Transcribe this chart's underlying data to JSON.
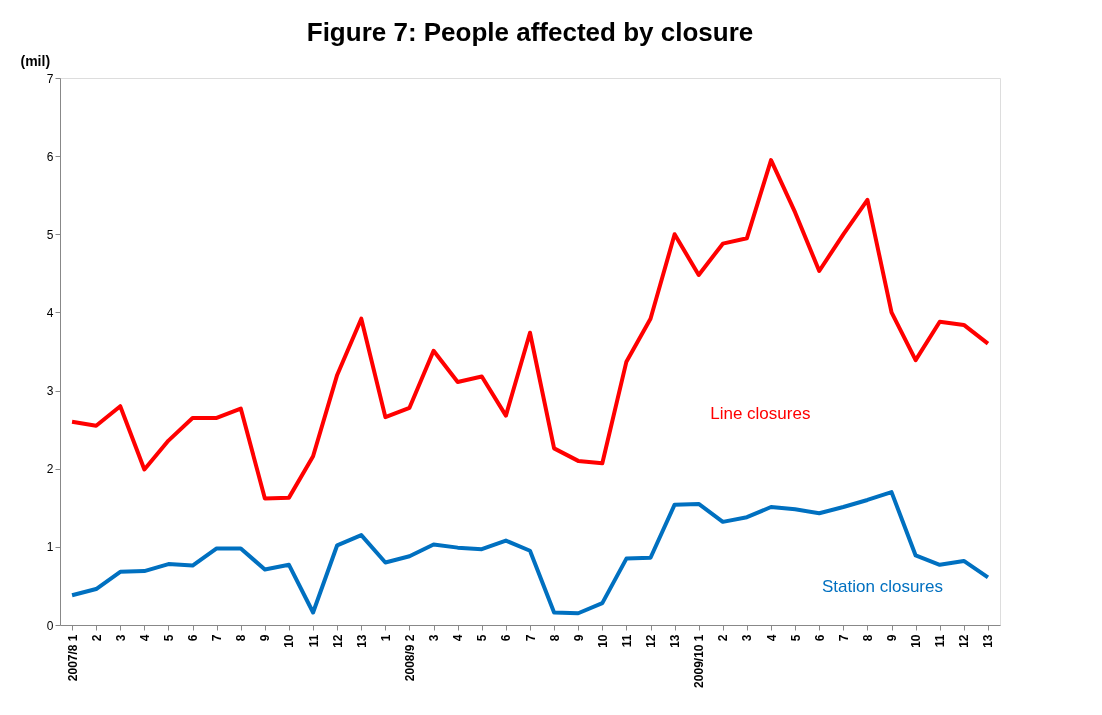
{
  "chart_data": {
    "type": "line",
    "title": "Figure 7: People affected  by closure",
    "ylabel": "(mil)",
    "categories": [
      "2007/8 1",
      "2",
      "3",
      "4",
      "5",
      "6",
      "7",
      "8",
      "9",
      "10",
      "11",
      "12",
      "13",
      "1",
      "2008/9 2",
      "3",
      "4",
      "5",
      "6",
      "7",
      "8",
      "9",
      "10",
      "11",
      "12",
      "13",
      "2009/10 1",
      "2",
      "3",
      "4",
      "5",
      "6",
      "7",
      "8",
      "9",
      "10",
      "11",
      "12",
      "13"
    ],
    "series": [
      {
        "name": "Line closures",
        "color": "#ff0000",
        "values": [
          2.6,
          2.55,
          2.8,
          1.99,
          2.36,
          2.65,
          2.65,
          2.77,
          1.62,
          1.63,
          2.16,
          3.2,
          3.92,
          2.66,
          2.78,
          3.51,
          3.11,
          3.18,
          2.68,
          3.74,
          2.26,
          2.1,
          2.07,
          3.37,
          3.92,
          5.0,
          4.48,
          4.88,
          4.95,
          5.95,
          5.28,
          4.53,
          5.0,
          5.44,
          4.0,
          3.39,
          3.88,
          3.84,
          3.6
        ]
      },
      {
        "name": "Station closures",
        "color": "#0070c0",
        "values": [
          0.38,
          0.46,
          0.68,
          0.69,
          0.78,
          0.76,
          0.98,
          0.98,
          0.71,
          0.77,
          0.16,
          1.02,
          1.15,
          0.8,
          0.88,
          1.03,
          0.99,
          0.97,
          1.08,
          0.95,
          0.16,
          0.15,
          0.28,
          0.85,
          0.86,
          1.54,
          1.55,
          1.32,
          1.38,
          1.51,
          1.48,
          1.43,
          1.51,
          1.6,
          1.7,
          0.89,
          0.77,
          0.82,
          0.61
        ]
      }
    ],
    "ylim": [
      0,
      7
    ],
    "yticks": [
      0,
      1,
      2,
      3,
      4,
      5,
      6,
      7
    ],
    "grid": false,
    "legend": false,
    "line_style": "solid",
    "marker": "none"
  }
}
